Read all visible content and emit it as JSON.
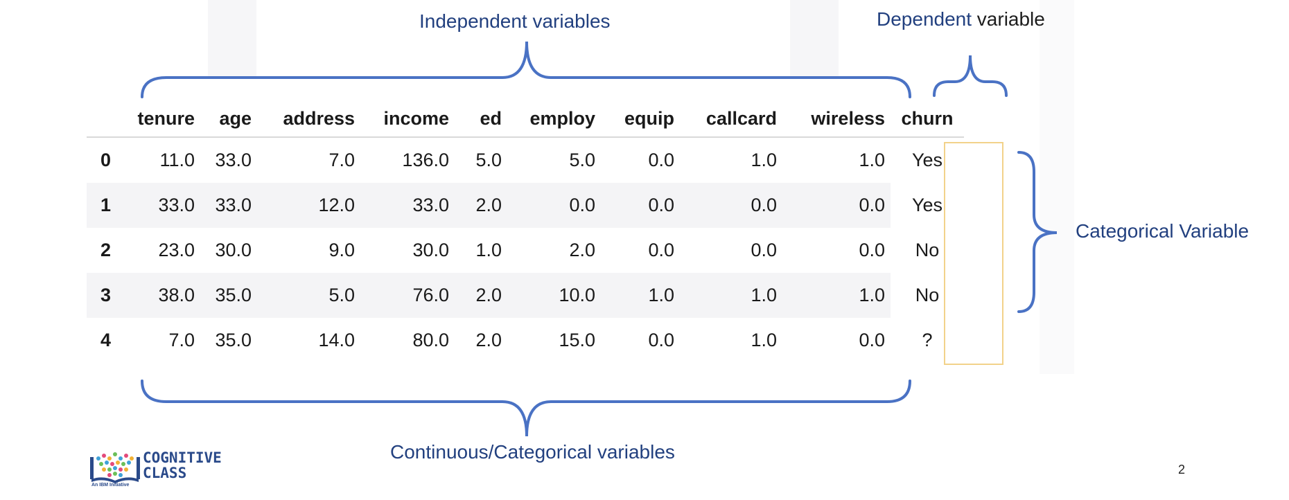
{
  "annotations": {
    "independent": "Independent variables",
    "dependent_highlight": "Dependent",
    "dependent_rest": " variable",
    "categorical": "Categorical Variable",
    "continuous": "Continuous/Categorical variables"
  },
  "table": {
    "columns": [
      "tenure",
      "age",
      "address",
      "income",
      "ed",
      "employ",
      "equip",
      "callcard",
      "wireless",
      "churn"
    ],
    "rows": [
      {
        "index": "0",
        "values": [
          "11.0",
          "33.0",
          "7.0",
          "136.0",
          "5.0",
          "5.0",
          "0.0",
          "1.0",
          "1.0"
        ],
        "churn": "Yes"
      },
      {
        "index": "1",
        "values": [
          "33.0",
          "33.0",
          "12.0",
          "33.0",
          "2.0",
          "0.0",
          "0.0",
          "0.0",
          "0.0"
        ],
        "churn": "Yes"
      },
      {
        "index": "2",
        "values": [
          "23.0",
          "30.0",
          "9.0",
          "30.0",
          "1.0",
          "2.0",
          "0.0",
          "0.0",
          "0.0"
        ],
        "churn": "No"
      },
      {
        "index": "3",
        "values": [
          "38.0",
          "35.0",
          "5.0",
          "76.0",
          "2.0",
          "10.0",
          "1.0",
          "1.0",
          "1.0"
        ],
        "churn": "No"
      },
      {
        "index": "4",
        "values": [
          "7.0",
          "35.0",
          "14.0",
          "80.0",
          "2.0",
          "15.0",
          "0.0",
          "1.0",
          "0.0"
        ],
        "churn": "?"
      }
    ]
  },
  "logo": {
    "line1": "COGNITIVE",
    "line2": "CLASS",
    "tagline": "An IBM Initiative"
  },
  "page_number": "2",
  "colors": {
    "brace": "#4a72c4",
    "annotation_text": "#22407f",
    "churn_box": "#f2d28a"
  }
}
